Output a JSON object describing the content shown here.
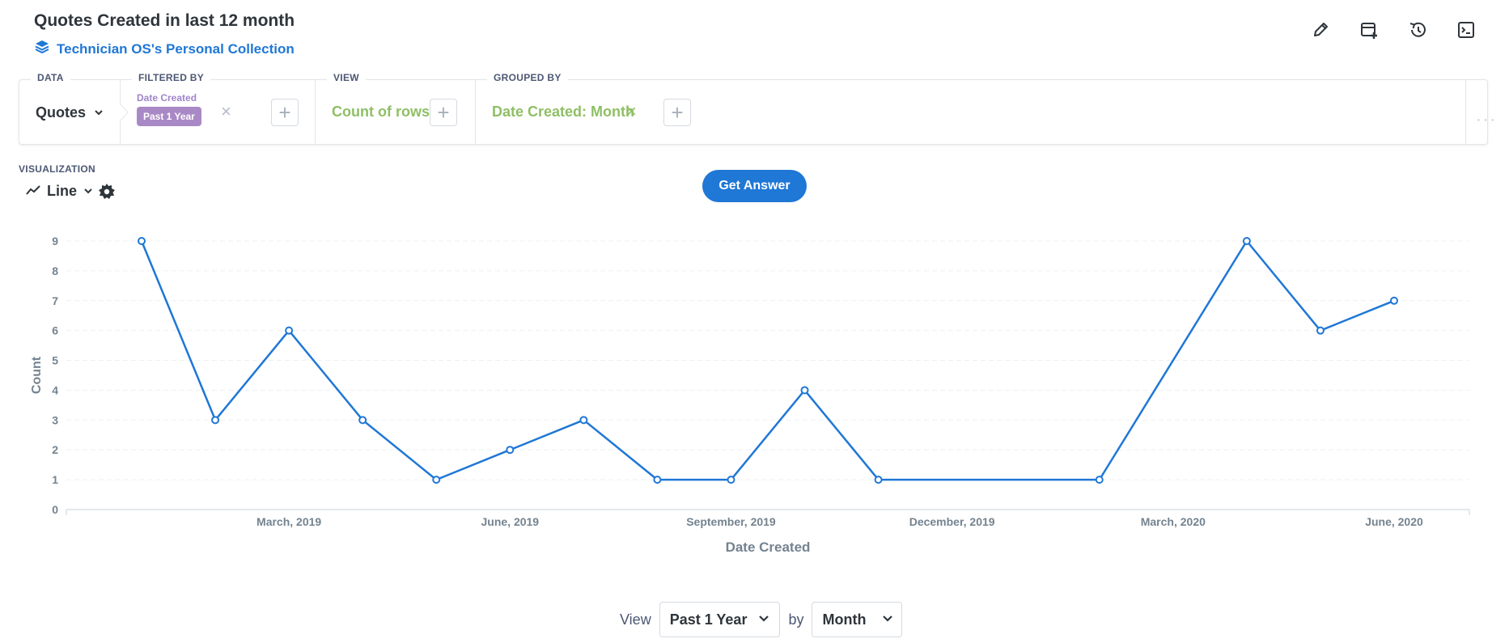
{
  "header": {
    "title": "Quotes Created in last 12 month",
    "collection": "Technician OS's Personal Collection"
  },
  "top_icons": [
    "pencil-icon",
    "add-to-dashboard-icon",
    "history-icon",
    "sql-console-icon"
  ],
  "query": {
    "data_label": "DATA",
    "data_value": "Quotes",
    "filter_label": "FILTERED BY",
    "filter_field": "Date Created",
    "filter_value": "Past 1 Year",
    "view_label": "VIEW",
    "view_value": "Count of rows",
    "group_label": "GROUPED BY",
    "group_value": "Date Created: Month"
  },
  "visualization": {
    "label": "VISUALIZATION",
    "type": "Line"
  },
  "get_answer": "Get Answer",
  "chart_data": {
    "type": "line",
    "xlabel": "Date Created",
    "ylabel": "Count",
    "x": [
      "2019-01",
      "2019-02",
      "2019-03",
      "2019-04",
      "2019-05",
      "2019-06",
      "2019-07",
      "2019-08",
      "2019-09",
      "2019-10",
      "2019-11",
      "2019-12",
      "2020-01",
      "2020-02",
      "2020-03",
      "2020-04",
      "2020-05",
      "2020-06"
    ],
    "values": [
      9,
      3,
      6,
      3,
      1,
      2,
      3,
      1,
      1,
      4,
      1,
      null,
      null,
      1,
      null,
      9,
      6,
      7
    ],
    "x_tick_labels": [
      "March, 2019",
      "June, 2019",
      "September, 2019",
      "December, 2019",
      "March, 2020",
      "June, 2020"
    ],
    "x_tick_months": [
      "2019-03",
      "2019-06",
      "2019-09",
      "2019-12",
      "2020-03",
      "2020-06"
    ],
    "y_ticks": [
      0,
      1,
      2,
      3,
      4,
      5,
      6,
      7,
      8,
      9
    ],
    "ylim": [
      0,
      9
    ],
    "grid": true,
    "color": "#1f77d6"
  },
  "footer": {
    "view_label": "View",
    "range_value": "Past 1 Year",
    "by_label": "by",
    "unit_value": "Month"
  }
}
